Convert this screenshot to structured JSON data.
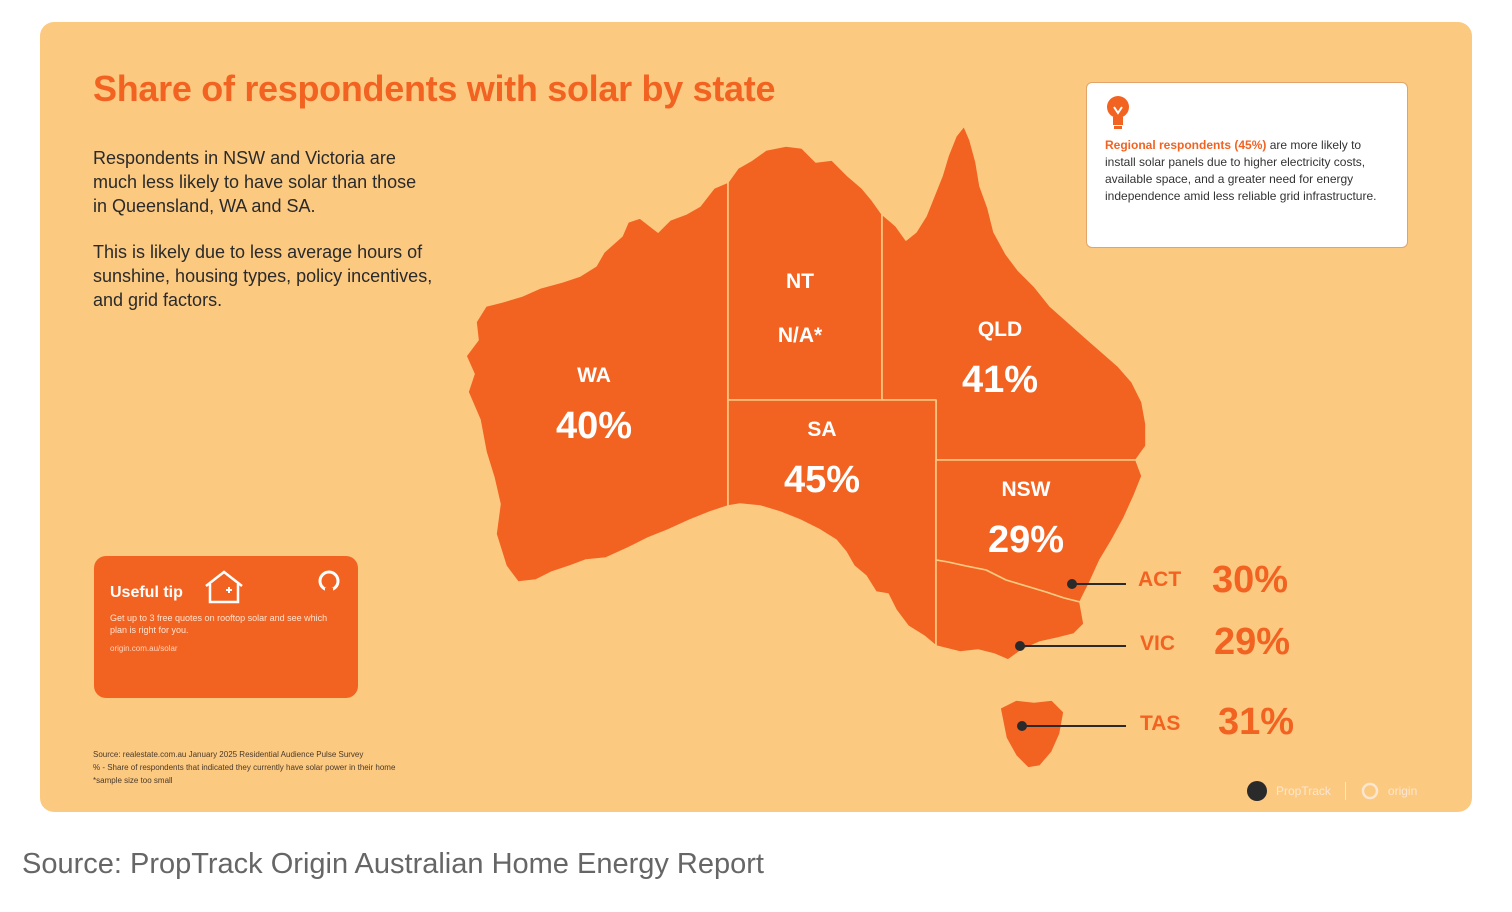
{
  "title": "Share of respondents with solar by state",
  "intro": {
    "paragraph1": "Respondents in NSW and Victoria are much less likely to have solar than those in Queensland, WA and SA.",
    "paragraph2": "This is likely due to less average hours of sunshine, housing types, policy incentives, and grid factors."
  },
  "states": [
    {
      "code": "WA",
      "value_label": "40%",
      "value": 40
    },
    {
      "code": "NT",
      "value_label": "N/A*",
      "value": null
    },
    {
      "code": "QLD",
      "value_label": "41%",
      "value": 41
    },
    {
      "code": "SA",
      "value_label": "45%",
      "value": 45
    },
    {
      "code": "NSW",
      "value_label": "29%",
      "value": 29
    },
    {
      "code": "ACT",
      "value_label": "30%",
      "value": 30
    },
    {
      "code": "VIC",
      "value_label": "29%",
      "value": 29
    },
    {
      "code": "TAS",
      "value_label": "31%",
      "value": 31
    }
  ],
  "insight": {
    "highlight": "Regional respondents (45%)",
    "text": " are more likely to install solar panels due to higher electricity costs, available space, and a greater need for energy independence amid less reliable grid infrastructure."
  },
  "tip": {
    "title": "Useful tip",
    "body": "Get up to 3 free quotes on rooftop solar and see which plan is right for you.",
    "link": "origin.com.au/solar"
  },
  "footnotes": {
    "line1": "Source: realestate.com.au January 2025 Residential Audience Pulse Survey",
    "line2": "% - Share of respondents that indicated they currently have solar power in their home",
    "line3": "*sample size too small"
  },
  "logos": {
    "proptrack": "PropTrack",
    "origin": "origin"
  },
  "source_caption": "Source: PropTrack Origin Australian Home Energy Report",
  "colors": {
    "card_bg": "#fcc981",
    "accent": "#f26322",
    "text": "#2a2a2a"
  }
}
